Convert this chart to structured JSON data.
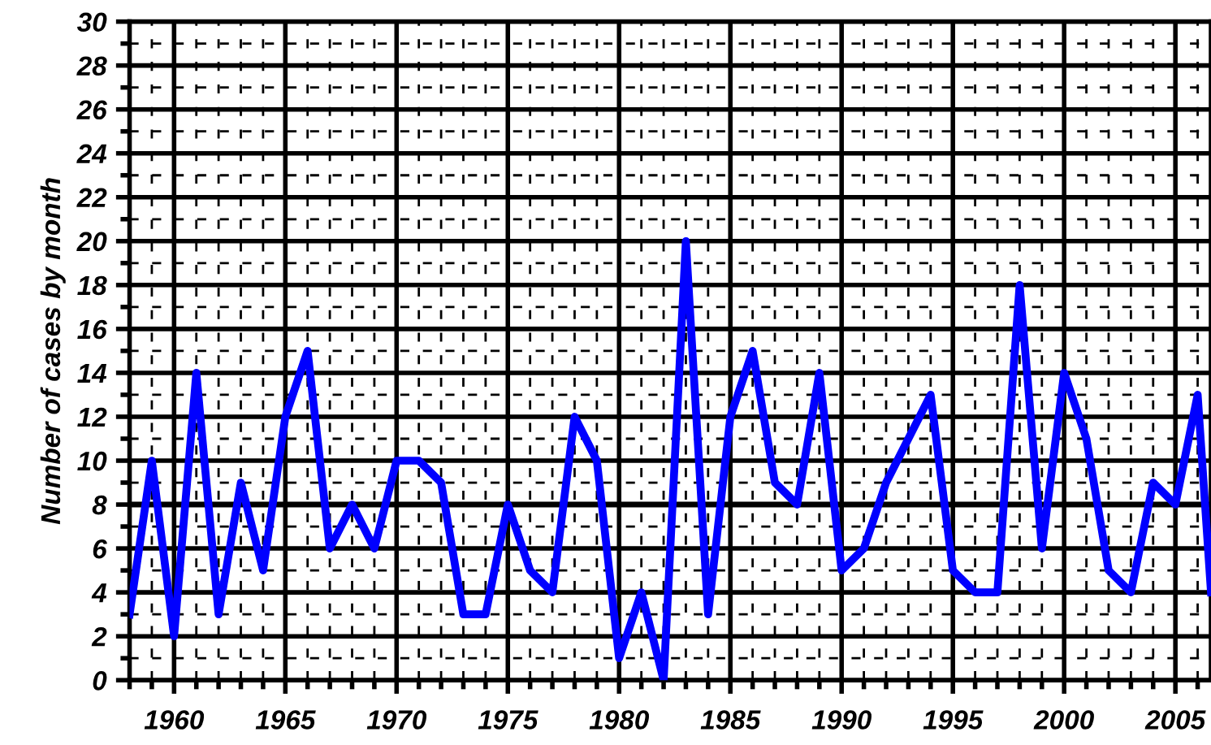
{
  "chart_data": {
    "type": "line",
    "ylabel": "Number of cases by month",
    "x": [
      1958,
      1959,
      1960,
      1961,
      1962,
      1963,
      1964,
      1965,
      1966,
      1967,
      1968,
      1969,
      1970,
      1971,
      1972,
      1973,
      1974,
      1975,
      1976,
      1977,
      1978,
      1979,
      1980,
      1981,
      1982,
      1983,
      1984,
      1985,
      1986,
      1987,
      1988,
      1989,
      1990,
      1991,
      1992,
      1993,
      1994,
      1995,
      1996,
      1997,
      1998,
      1999,
      2000,
      2001,
      2002,
      2003,
      2004,
      2005,
      2006,
      2006.6
    ],
    "series": [
      {
        "color": "#0000ff",
        "values": [
          3,
          10,
          2,
          14,
          3,
          9,
          5,
          12,
          15,
          6,
          8,
          6,
          10,
          10,
          9,
          3,
          3,
          8,
          5,
          4,
          12,
          10,
          1,
          4,
          0,
          20,
          3,
          12,
          15,
          9,
          8,
          14,
          5,
          6,
          9,
          11,
          13,
          5,
          4,
          4,
          18,
          6,
          14,
          11,
          5,
          4,
          9,
          8,
          13,
          4
        ]
      }
    ],
    "xlim": [
      1958,
      2006.6
    ],
    "ylim": [
      0,
      30
    ],
    "xticks": [
      1960,
      1965,
      1970,
      1975,
      1980,
      1985,
      1990,
      1995,
      2000,
      2005
    ],
    "yticks": [
      0,
      2,
      4,
      6,
      8,
      10,
      12,
      14,
      16,
      18,
      20,
      22,
      24,
      26,
      28,
      30
    ],
    "ref_lines": [
      {
        "axis": "y",
        "value": 8,
        "color": "#000000"
      }
    ],
    "grid": true,
    "marker": "none",
    "line_style": "solid",
    "legend": false
  }
}
